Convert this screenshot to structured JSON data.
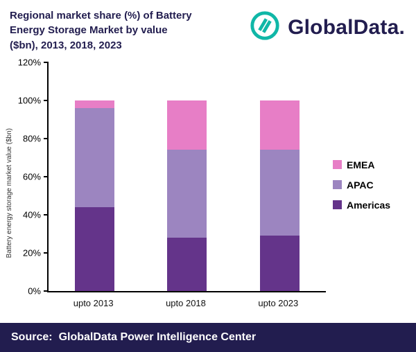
{
  "header": {
    "title_lines": [
      "Regional market share (%) of Battery",
      "Energy Storage Market by value",
      "($bn), 2013, 2018, 2023"
    ],
    "brand": "GlobalData.",
    "brand_color": "#221d4f",
    "logo_color": "#10b7a7"
  },
  "chart_data": {
    "type": "bar",
    "stacked": true,
    "title": "Regional market share (%) of Battery Energy Storage Market by value ($bn), 2013, 2018, 2023",
    "categories": [
      "upto 2013",
      "upto 2018",
      "upto 2023"
    ],
    "series": [
      {
        "name": "EMEA",
        "color": "#e77ec6",
        "values": [
          4,
          26,
          26
        ]
      },
      {
        "name": "APAC",
        "color": "#9c85c0",
        "values": [
          52,
          46,
          45
        ]
      },
      {
        "name": "Americas",
        "color": "#64348a",
        "values": [
          44,
          28,
          29
        ]
      }
    ],
    "ylabel": "Battery energy storage market value ($bn)",
    "ylim": [
      0,
      120
    ],
    "ytick_step": 20,
    "ytick_suffix": "%",
    "legend_position": "right",
    "grid": false
  },
  "footer": {
    "source_label": "Source:",
    "source_text": "GlobalData Power Intelligence Center",
    "background": "#221d4f"
  }
}
